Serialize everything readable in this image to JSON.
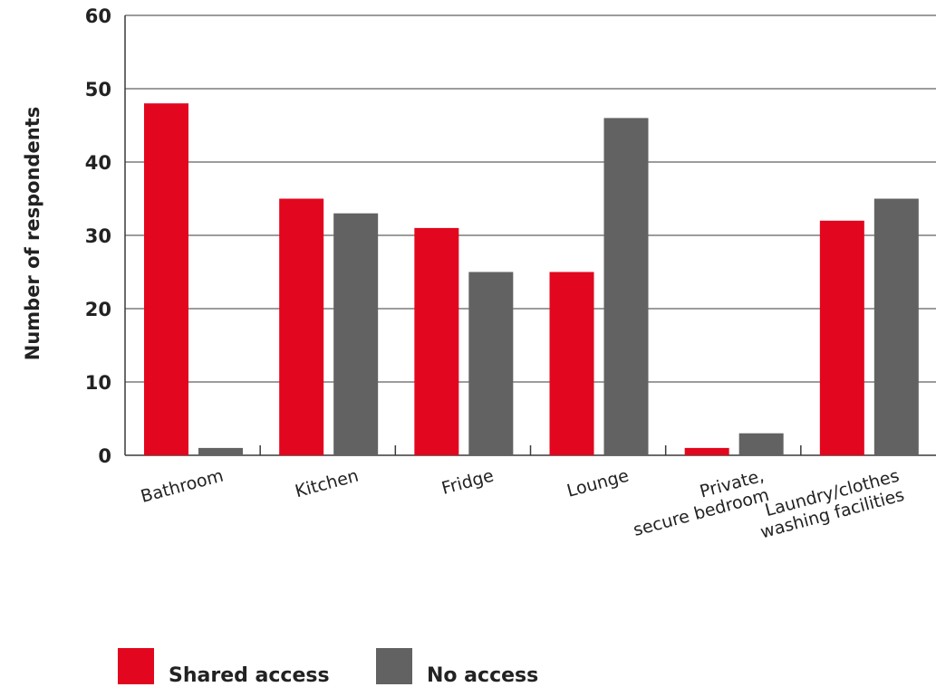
{
  "chart_data": {
    "type": "bar",
    "title": "",
    "xlabel": "",
    "ylabel": "Number of respondents",
    "ylim": [
      0,
      60
    ],
    "yticks": [
      0,
      10,
      20,
      30,
      40,
      50,
      60
    ],
    "grid": true,
    "legend_position": "bottom-left",
    "categories": [
      [
        "Bathroom"
      ],
      [
        "Kitchen"
      ],
      [
        "Fridge"
      ],
      [
        "Lounge"
      ],
      [
        "Private,",
        "secure bedroom"
      ],
      [
        "Laundry/clothes",
        "washing facilities"
      ]
    ],
    "series": [
      {
        "name": "Shared access",
        "color": "#e2071e",
        "values": [
          48,
          35,
          31,
          25,
          1,
          32
        ]
      },
      {
        "name": "No access",
        "color": "#626262",
        "values": [
          1,
          33,
          25,
          46,
          3,
          35
        ]
      }
    ]
  }
}
